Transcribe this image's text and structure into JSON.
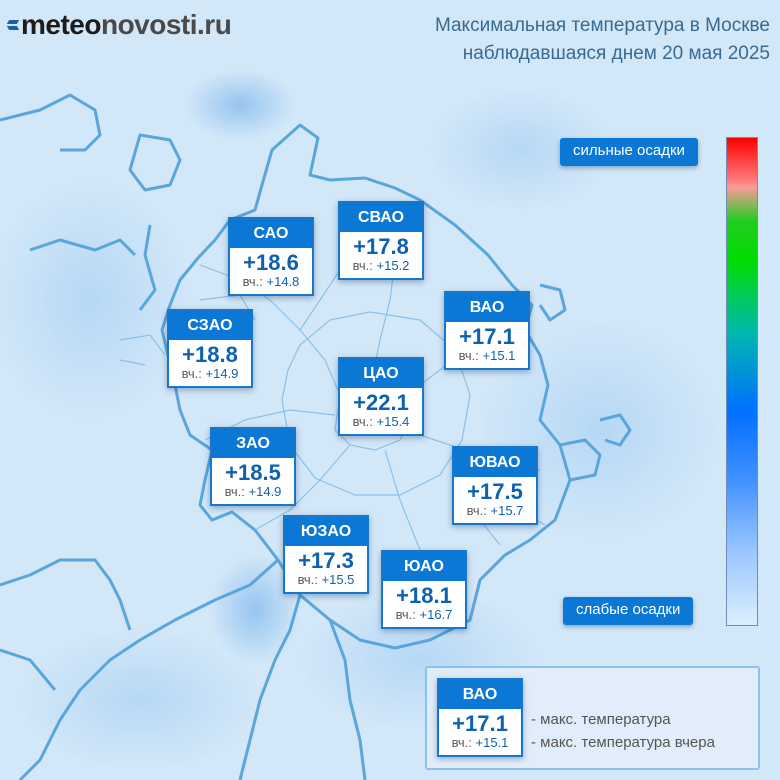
{
  "header": {
    "logo_main": "meteo",
    "logo_sub": "novosti.ru",
    "title_line1": "Максимальная температура в Москве",
    "title_line2": "наблюдавшаяся днем 20 мая 2025"
  },
  "yesterday_label": "вч.:",
  "districts": [
    {
      "name": "САО",
      "temp": "+18.6",
      "yesterday": "+14.8"
    },
    {
      "name": "СВАО",
      "temp": "+17.8",
      "yesterday": "+15.2"
    },
    {
      "name": "СЗАО",
      "temp": "+18.8",
      "yesterday": "+14.9"
    },
    {
      "name": "ВАО",
      "temp": "+17.1",
      "yesterday": "+15.1"
    },
    {
      "name": "ЦАО",
      "temp": "+22.1",
      "yesterday": "+15.4"
    },
    {
      "name": "ЗАО",
      "temp": "+18.5",
      "yesterday": "+14.9"
    },
    {
      "name": "ЮВАО",
      "temp": "+17.5",
      "yesterday": "+15.7"
    },
    {
      "name": "ЮЗАО",
      "temp": "+17.3",
      "yesterday": "+15.5"
    },
    {
      "name": "ЮАО",
      "temp": "+18.1",
      "yesterday": "+16.7"
    }
  ],
  "precip_scale": {
    "top_label": "сильные осадки",
    "bottom_label": "слабые осадки",
    "colors": [
      "#ff0000",
      "#ff9a9a",
      "#00dd00",
      "#0070ff",
      "#dbeeff"
    ]
  },
  "legend": {
    "name": "ВАО",
    "temp": "+17.1",
    "yesterday": "+15.1",
    "temp_desc": "- макс. температура",
    "yesterday_desc": "- макс. температура вчера"
  },
  "colors": {
    "accent": "#0c78d6",
    "map_background": "#d4e8f8",
    "district_lines": "#5aa6dc"
  }
}
